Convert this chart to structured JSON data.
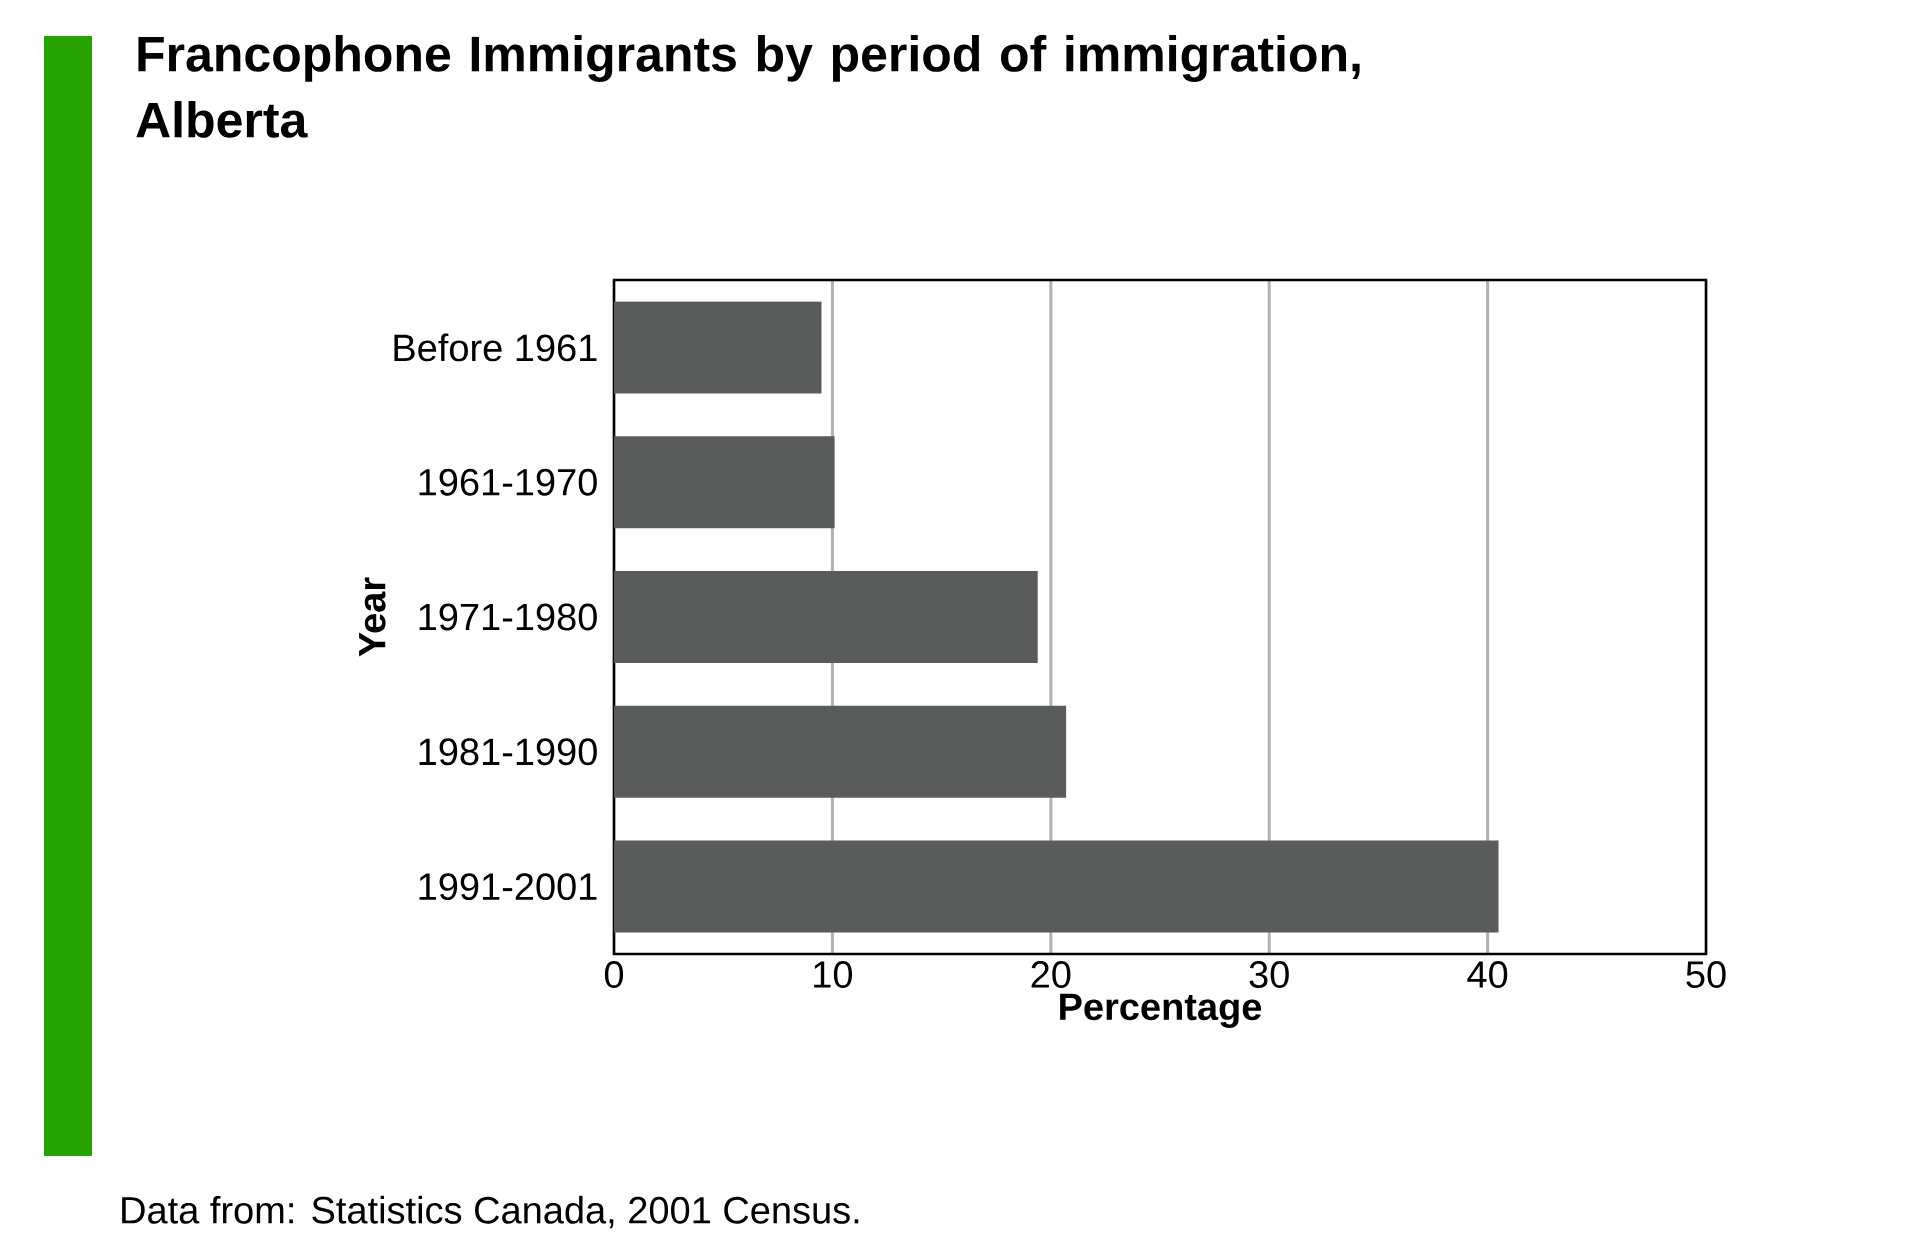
{
  "chart_data": {
    "type": "bar",
    "orientation": "horizontal",
    "title": "Francophone Immigrants by period of immigration, Alberta",
    "xlabel": "Percentage",
    "ylabel": "Year",
    "categories": [
      "Before 1961",
      "1961-1970",
      "1971-1980",
      "1981-1990",
      "1991-2001"
    ],
    "values": [
      9.5,
      10.1,
      19.4,
      20.7,
      40.5
    ],
    "color": "#5a5b5b",
    "xlim": [
      0,
      50
    ],
    "xticks": [
      0,
      10,
      20,
      30,
      40,
      50
    ],
    "grid": "x",
    "annotations": [
      "Data from: Statistics Canada, 2001 Census."
    ]
  }
}
